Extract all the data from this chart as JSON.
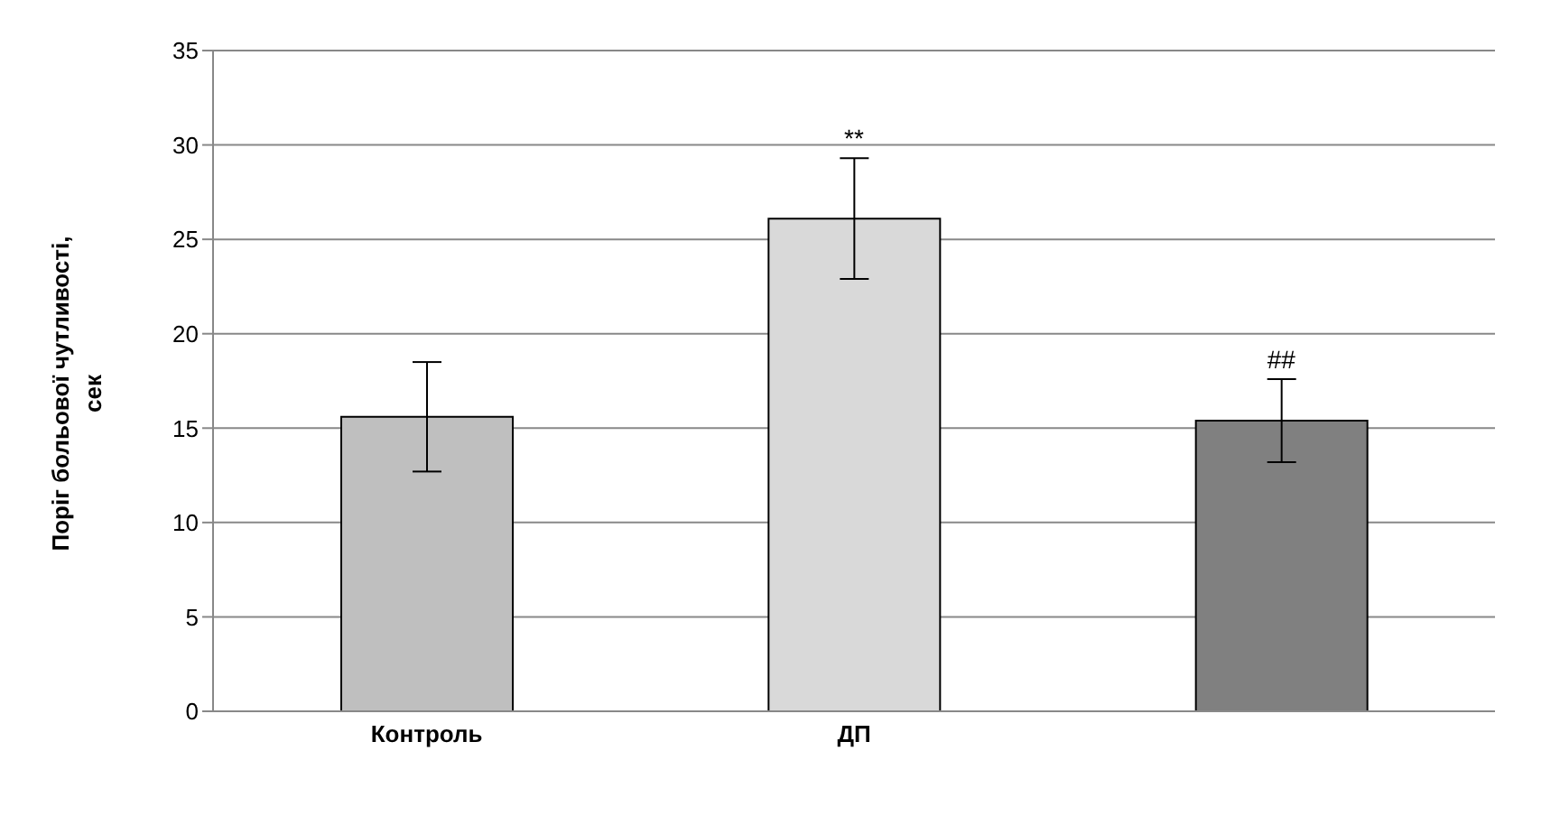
{
  "chart_data": {
    "type": "bar",
    "ylabel": "Поріг больової чутливості, сек",
    "categories": [
      "Контроль",
      "ДП",
      null
    ],
    "values": [
      15.6,
      26.1,
      15.4
    ],
    "errors": [
      2.9,
      3.2,
      2.2
    ],
    "colors": [
      "#bfbfbf",
      "#d9d9d9",
      "#808080"
    ],
    "ylim": [
      0,
      35
    ],
    "yticks": [
      0,
      5,
      10,
      15,
      20,
      25,
      30,
      35
    ],
    "grid": "y",
    "annotations": [
      {
        "text": "**",
        "x": "ДП",
        "y": 29.3
      },
      {
        "text": "##",
        "y": 17.6
      }
    ]
  }
}
